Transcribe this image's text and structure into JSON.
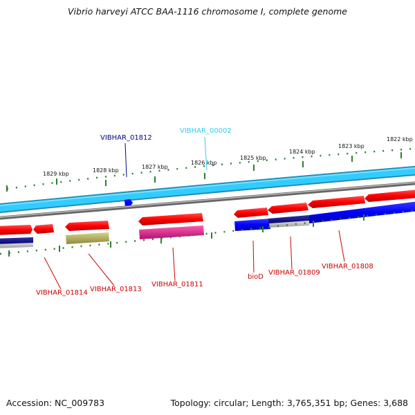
{
  "title": "Vibrio harveyi ATCC BAA-1116 chromosome I, complete genome",
  "scale_labels": [
    "1829 kbp",
    "1828 kbp",
    "1827 kbp",
    "1826 kbp",
    "1825 kbp",
    "1824 kbp",
    "1823 kbp",
    "1822 kbp"
  ],
  "gene_labels": {
    "top": [
      "VIBHAR_01812",
      "VIBHAR_00002"
    ],
    "bottom": [
      "VIBHAR_01814",
      "VIBHAR_01813",
      "VIBHAR_01811",
      "bioD",
      "VIBHAR_01809",
      "VIBHAR_01808"
    ]
  },
  "footer": {
    "accession": "Accession: NC_009783",
    "topology": "Topology: circular; Length: 3,765,351 bp; Genes: 3,688"
  },
  "colors": {
    "backbone": "#33ccff",
    "backbone_dark": "#1f8fb8",
    "grey_track": "#888888",
    "tick": "#2e7d32",
    "cds_forward": "#ff0000",
    "cds_reverse_blue": "#0000ff",
    "navy": "#000080",
    "olive": "#b5b05a",
    "magenta": "#e0208a",
    "label_red": "#cc0000",
    "label_blue": "#00008b",
    "label_cyan": "#33ccee"
  }
}
